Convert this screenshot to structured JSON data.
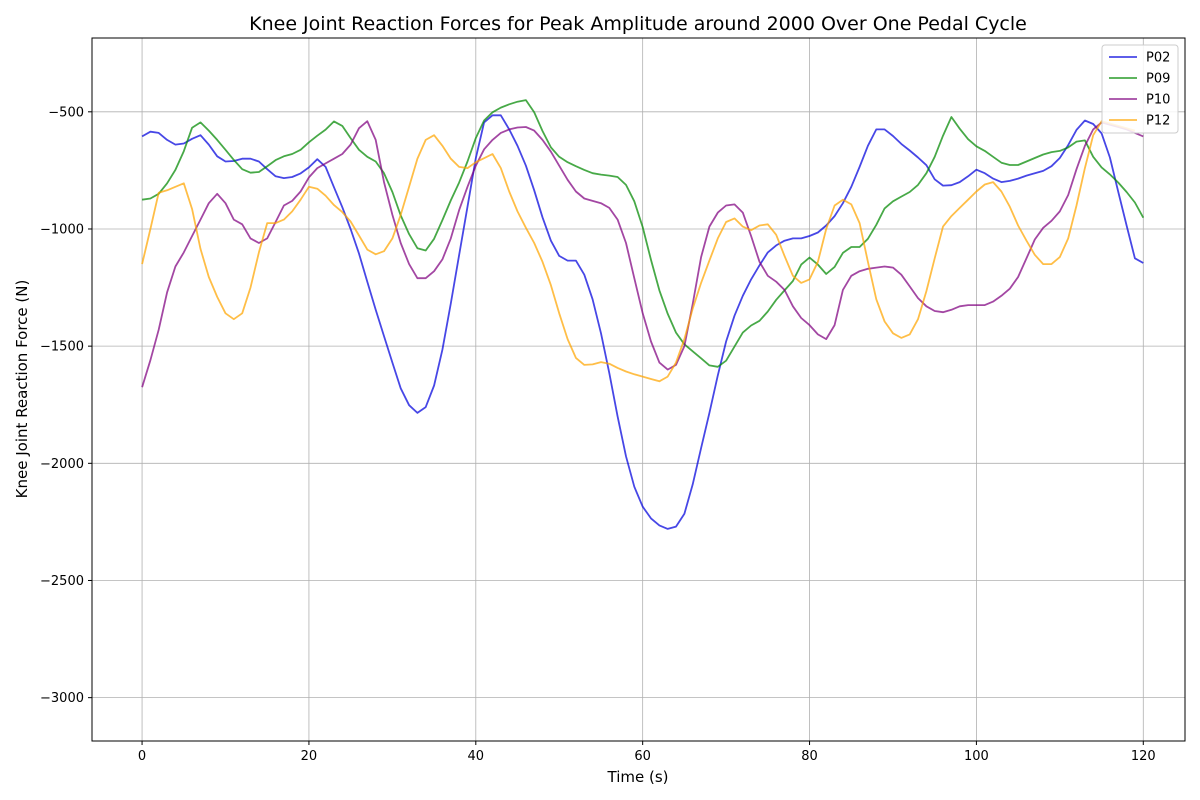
{
  "chart_data": {
    "type": "line",
    "title": "Knee Joint Reaction Forces for Peak Amplitude around 2000 Over One Pedal Cycle",
    "xlabel": "Time (s)",
    "ylabel": "Knee Joint Reaction Force (N)",
    "xlim": [
      -6,
      125
    ],
    "ylim": [
      -3185,
      -185
    ],
    "xticks": [
      0,
      20,
      40,
      60,
      80,
      100,
      120
    ],
    "yticks": [
      -3000,
      -2500,
      -2000,
      -1500,
      -1000,
      -500
    ],
    "xtick_labels": [
      "0",
      "20",
      "40",
      "60",
      "80",
      "100",
      "120"
    ],
    "ytick_labels": [
      "−3000",
      "−2500",
      "−2000",
      "−1500",
      "−1000",
      "−500"
    ],
    "grid": true,
    "legend_position": "top-right",
    "series": [
      {
        "name": "P02",
        "color": "#0000dd",
        "values": [
          -605,
          -585,
          -590,
          -620,
          -640,
          -635,
          -615,
          -600,
          -640,
          -690,
          -712,
          -710,
          -700,
          -700,
          -712,
          -745,
          -775,
          -783,
          -778,
          -763,
          -737,
          -702,
          -735,
          -822,
          -907,
          -1000,
          -1105,
          -1225,
          -1345,
          -1457,
          -1570,
          -1680,
          -1752,
          -1785,
          -1760,
          -1668,
          -1515,
          -1318,
          -1112,
          -905,
          -698,
          -545,
          -515,
          -515,
          -575,
          -645,
          -730,
          -835,
          -950,
          -1050,
          -1115,
          -1135,
          -1135,
          -1195,
          -1300,
          -1445,
          -1615,
          -1800,
          -1970,
          -2100,
          -2185,
          -2235,
          -2265,
          -2280,
          -2270,
          -2215,
          -2090,
          -1935,
          -1785,
          -1625,
          -1480,
          -1370,
          -1285,
          -1215,
          -1155,
          -1100,
          -1070,
          -1050,
          -1040,
          -1040,
          -1030,
          -1015,
          -985,
          -945,
          -890,
          -820,
          -735,
          -645,
          -575,
          -575,
          -603,
          -637,
          -665,
          -695,
          -728,
          -788,
          -815,
          -813,
          -800,
          -775,
          -747,
          -762,
          -785,
          -800,
          -795,
          -785,
          -772,
          -762,
          -752,
          -732,
          -697,
          -642,
          -577,
          -537,
          -552,
          -592,
          -695,
          -842,
          -985,
          -1125,
          -1145
        ]
      },
      {
        "name": "P09",
        "color": "#008800",
        "values": [
          -875,
          -870,
          -850,
          -805,
          -748,
          -668,
          -568,
          -545,
          -580,
          -620,
          -662,
          -705,
          -745,
          -760,
          -757,
          -732,
          -706,
          -690,
          -680,
          -662,
          -630,
          -602,
          -576,
          -541,
          -560,
          -612,
          -662,
          -692,
          -712,
          -762,
          -842,
          -942,
          -1022,
          -1082,
          -1092,
          -1042,
          -962,
          -878,
          -802,
          -712,
          -612,
          -537,
          -502,
          -482,
          -468,
          -457,
          -450,
          -502,
          -582,
          -652,
          -692,
          -715,
          -732,
          -748,
          -762,
          -768,
          -772,
          -778,
          -812,
          -882,
          -992,
          -1132,
          -1262,
          -1362,
          -1442,
          -1492,
          -1522,
          -1552,
          -1582,
          -1588,
          -1562,
          -1502,
          -1442,
          -1412,
          -1392,
          -1352,
          -1302,
          -1262,
          -1222,
          -1152,
          -1122,
          -1152,
          -1192,
          -1162,
          -1102,
          -1077,
          -1077,
          -1042,
          -982,
          -912,
          -882,
          -862,
          -842,
          -812,
          -762,
          -692,
          -602,
          -522,
          -572,
          -617,
          -647,
          -667,
          -692,
          -717,
          -727,
          -727,
          -712,
          -697,
          -682,
          -672,
          -667,
          -652,
          -627,
          -622,
          -692,
          -737,
          -767,
          -802,
          -842,
          -887,
          -952
        ]
      },
      {
        "name": "P10",
        "color": "#800080",
        "values": [
          -1675,
          -1560,
          -1430,
          -1270,
          -1160,
          -1100,
          -1030,
          -960,
          -890,
          -850,
          -890,
          -960,
          -980,
          -1040,
          -1060,
          -1040,
          -970,
          -900,
          -880,
          -840,
          -780,
          -740,
          -720,
          -700,
          -680,
          -640,
          -570,
          -540,
          -620,
          -800,
          -940,
          -1060,
          -1150,
          -1210,
          -1210,
          -1180,
          -1130,
          -1040,
          -920,
          -820,
          -730,
          -660,
          -620,
          -590,
          -575,
          -567,
          -565,
          -580,
          -620,
          -670,
          -730,
          -790,
          -840,
          -870,
          -880,
          -890,
          -910,
          -960,
          -1060,
          -1210,
          -1360,
          -1480,
          -1570,
          -1600,
          -1580,
          -1500,
          -1320,
          -1120,
          -990,
          -930,
          -900,
          -895,
          -930,
          -1030,
          -1140,
          -1200,
          -1225,
          -1260,
          -1330,
          -1380,
          -1410,
          -1450,
          -1470,
          -1410,
          -1260,
          -1200,
          -1180,
          -1170,
          -1165,
          -1160,
          -1165,
          -1195,
          -1245,
          -1295,
          -1330,
          -1350,
          -1355,
          -1345,
          -1330,
          -1325,
          -1325,
          -1325,
          -1310,
          -1285,
          -1255,
          -1205,
          -1125,
          -1045,
          -995,
          -965,
          -925,
          -855,
          -745,
          -645,
          -575,
          -545,
          -555,
          -565,
          -575,
          -590,
          -605
        ]
      },
      {
        "name": "P12",
        "color": "#ffa500",
        "values": [
          -1150,
          -1000,
          -845,
          -835,
          -820,
          -805,
          -915,
          -1085,
          -1205,
          -1290,
          -1360,
          -1385,
          -1360,
          -1250,
          -1100,
          -975,
          -975,
          -960,
          -925,
          -875,
          -820,
          -828,
          -858,
          -898,
          -928,
          -968,
          -1028,
          -1088,
          -1108,
          -1095,
          -1040,
          -940,
          -820,
          -700,
          -620,
          -600,
          -645,
          -700,
          -735,
          -740,
          -715,
          -698,
          -680,
          -740,
          -840,
          -925,
          -995,
          -1060,
          -1140,
          -1240,
          -1360,
          -1470,
          -1550,
          -1580,
          -1578,
          -1568,
          -1575,
          -1593,
          -1608,
          -1620,
          -1630,
          -1640,
          -1650,
          -1630,
          -1570,
          -1470,
          -1340,
          -1230,
          -1135,
          -1040,
          -970,
          -955,
          -990,
          -1005,
          -985,
          -980,
          -1025,
          -1115,
          -1200,
          -1230,
          -1215,
          -1140,
          -1000,
          -900,
          -875,
          -895,
          -975,
          -1140,
          -1300,
          -1395,
          -1445,
          -1465,
          -1450,
          -1385,
          -1265,
          -1125,
          -990,
          -945,
          -910,
          -875,
          -840,
          -810,
          -800,
          -840,
          -905,
          -985,
          -1050,
          -1110,
          -1150,
          -1150,
          -1120,
          -1040,
          -900,
          -740,
          -600,
          -540,
          -550,
          -560,
          -570,
          -580
        ]
      }
    ]
  }
}
